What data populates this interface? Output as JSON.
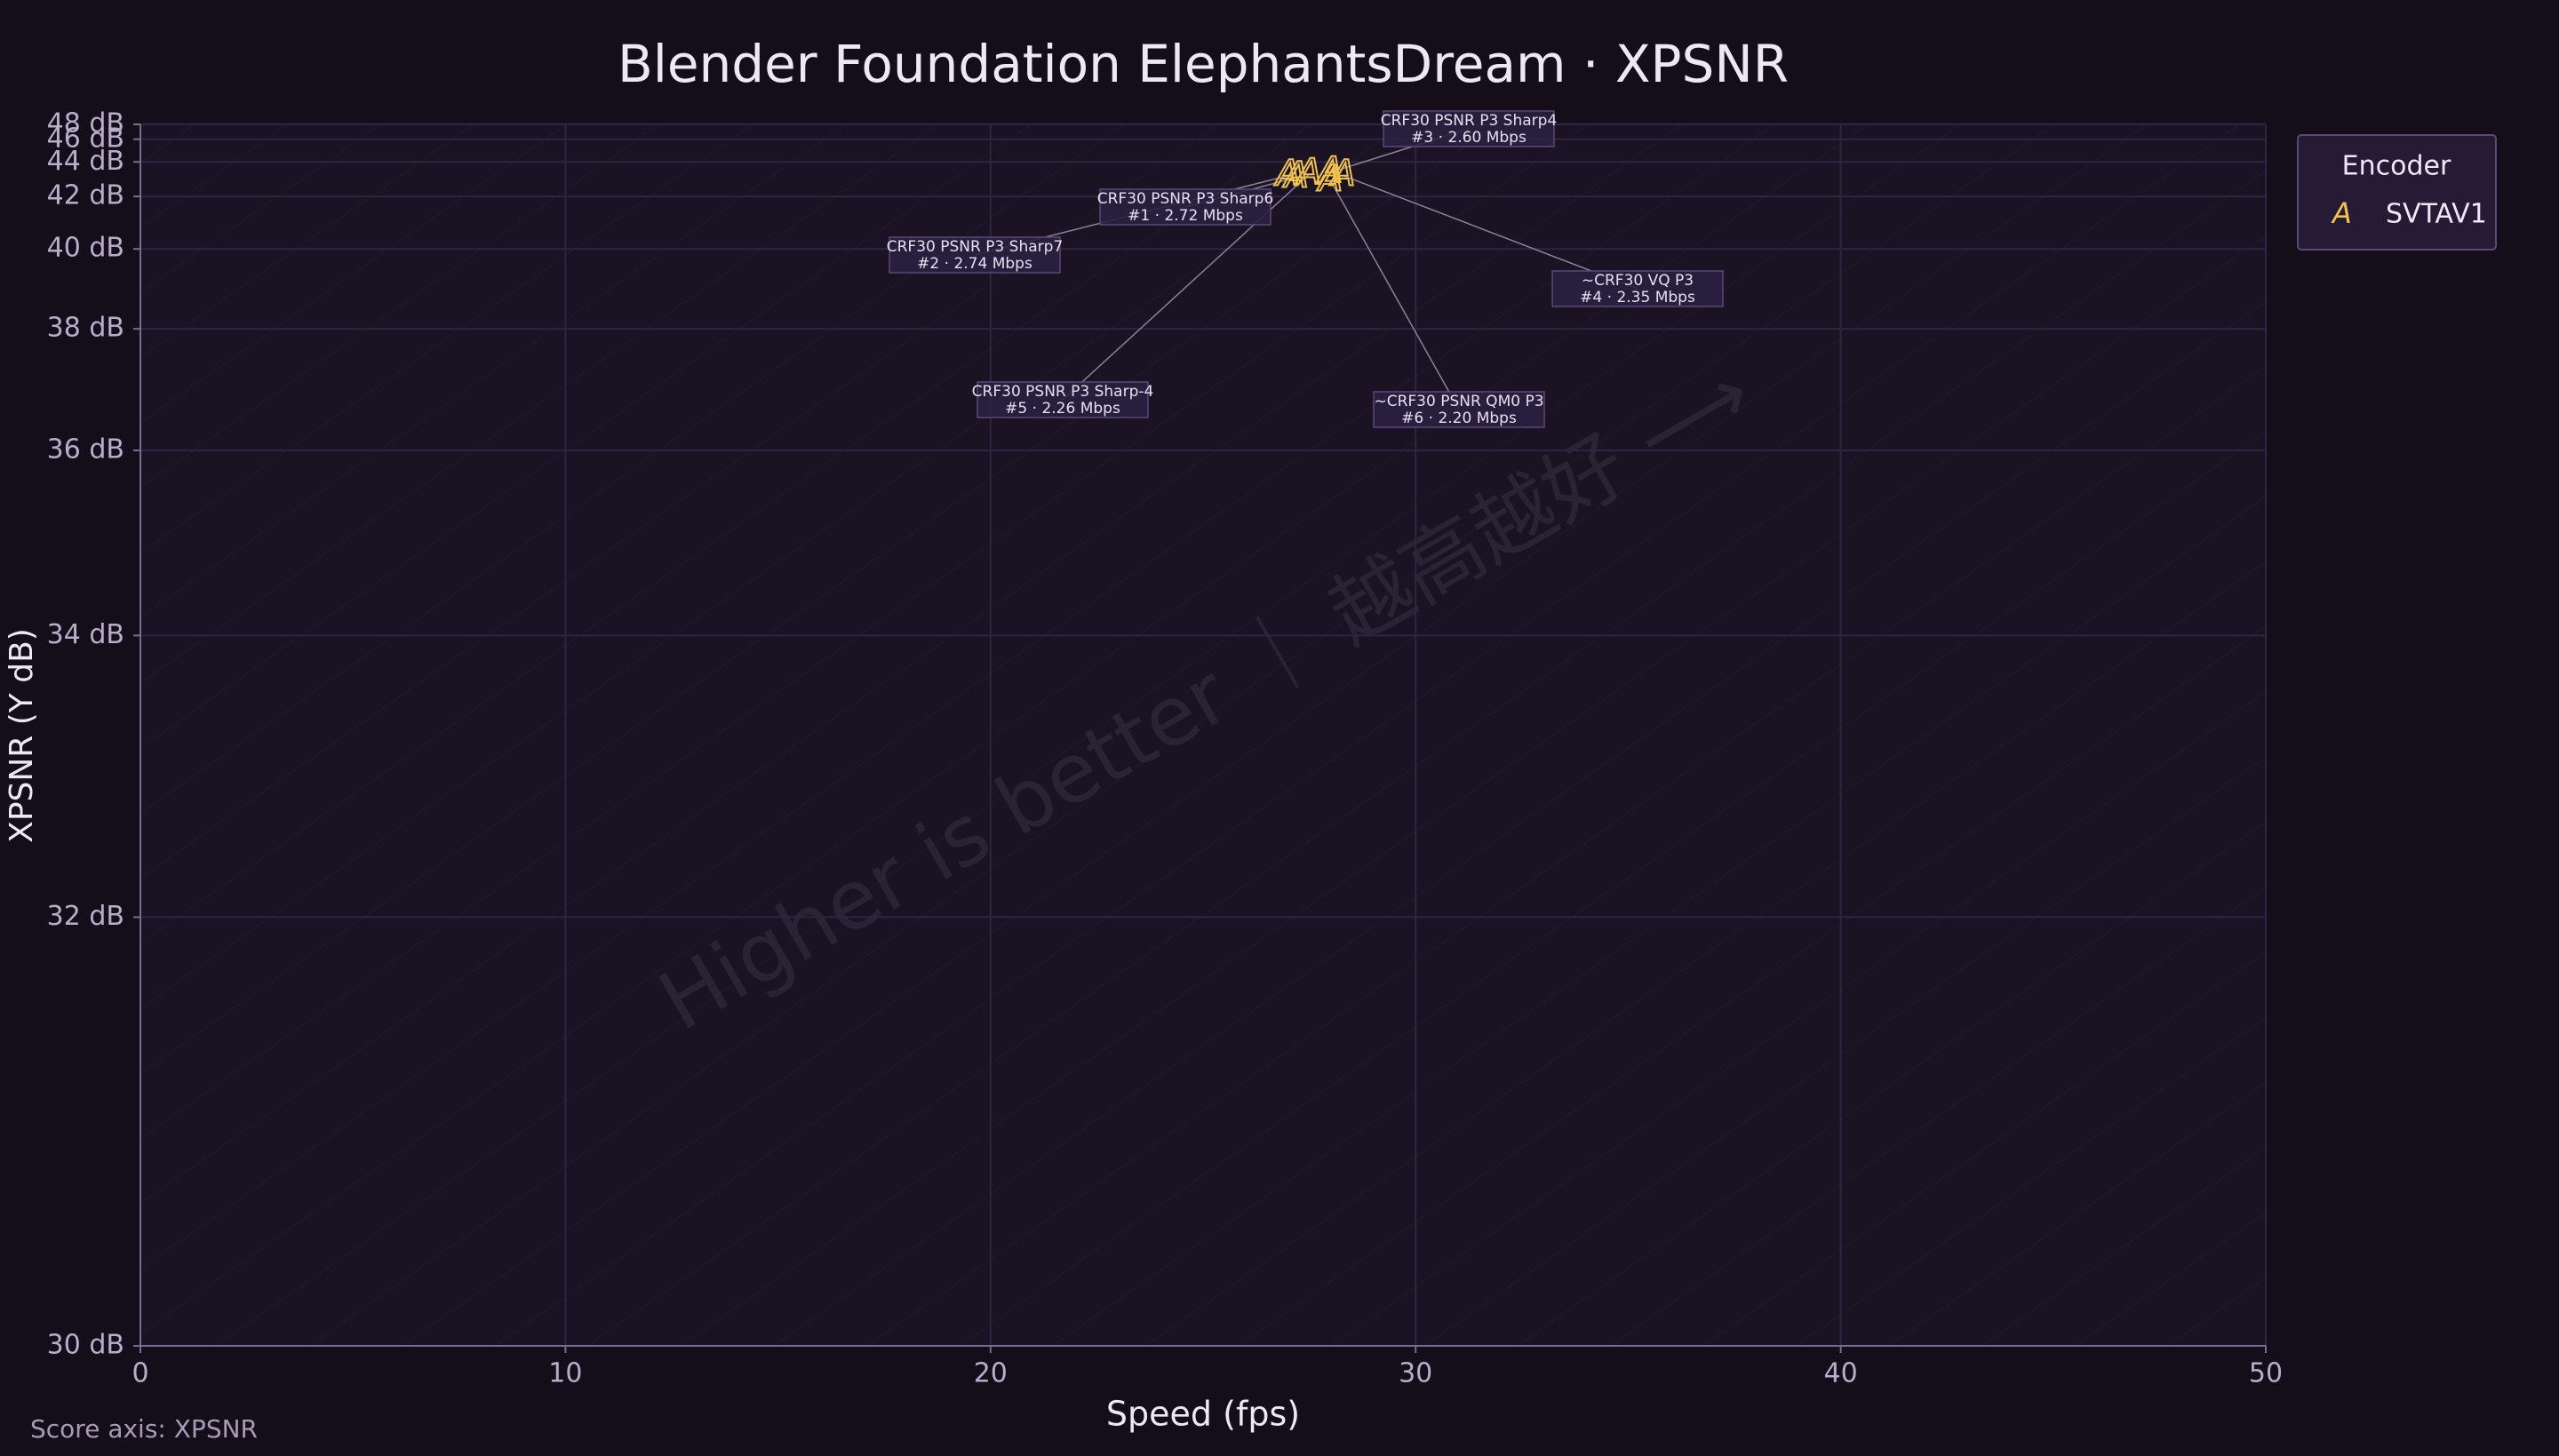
{
  "chart_data": {
    "type": "scatter",
    "title": "Blender Foundation ElephantsDream · XPSNR",
    "xlabel": "Speed (fps)",
    "ylabel": "XPSNR (Y dB)",
    "xlim": [
      0,
      50
    ],
    "xticks": [
      0,
      10,
      20,
      30,
      40,
      50
    ],
    "ylim": [
      30,
      48
    ],
    "yscale": "saturating",
    "yticks": [
      {
        "value": 30,
        "label": "30 dB"
      },
      {
        "value": 32,
        "label": "32 dB"
      },
      {
        "value": 34,
        "label": "34 dB"
      },
      {
        "value": 36,
        "label": "36 dB"
      },
      {
        "value": 38,
        "label": "38 dB"
      },
      {
        "value": 40,
        "label": "40 dB"
      },
      {
        "value": 42,
        "label": "42 dB"
      },
      {
        "value": 44,
        "label": "44 dB"
      },
      {
        "value": 46,
        "label": "46 dB"
      },
      {
        "value": 48,
        "label": "48 dB"
      }
    ],
    "grid": true,
    "legend_title": "Encoder",
    "legend": "outside-right",
    "series": [
      {
        "name": "SVTAV1",
        "color": "#f2c14e",
        "marker": "A",
        "x": [
          27.2,
          27.0,
          28.0,
          28.3,
          27.5,
          28.0
        ],
        "values": [
          43.0,
          43.1,
          43.3,
          43.1,
          43.2,
          42.8
        ],
        "point_labels": [
          {
            "text": "CRF30 PSNR P3 Sharp6",
            "detail": "#1 · 2.72 Mbps"
          },
          {
            "text": "CRF30 PSNR P3 Sharp7",
            "detail": "#2 · 2.74 Mbps"
          },
          {
            "text": "CRF30 PSNR P3 Sharp4",
            "detail": "#3 · 2.60 Mbps"
          },
          {
            "text": "~CRF30 VQ P3",
            "detail": "#4 · 2.35 Mbps"
          },
          {
            "text": "CRF30 PSNR P3 Sharp-4",
            "detail": "#5 · 2.26 Mbps"
          },
          {
            "text": "~CRF30 PSNR QM0 P3",
            "detail": "#6 · 2.20 Mbps"
          }
        ]
      }
    ],
    "watermark": "Higher is better ｜ 越高越好 ⟶",
    "footnote": "Score axis: XPSNR"
  }
}
